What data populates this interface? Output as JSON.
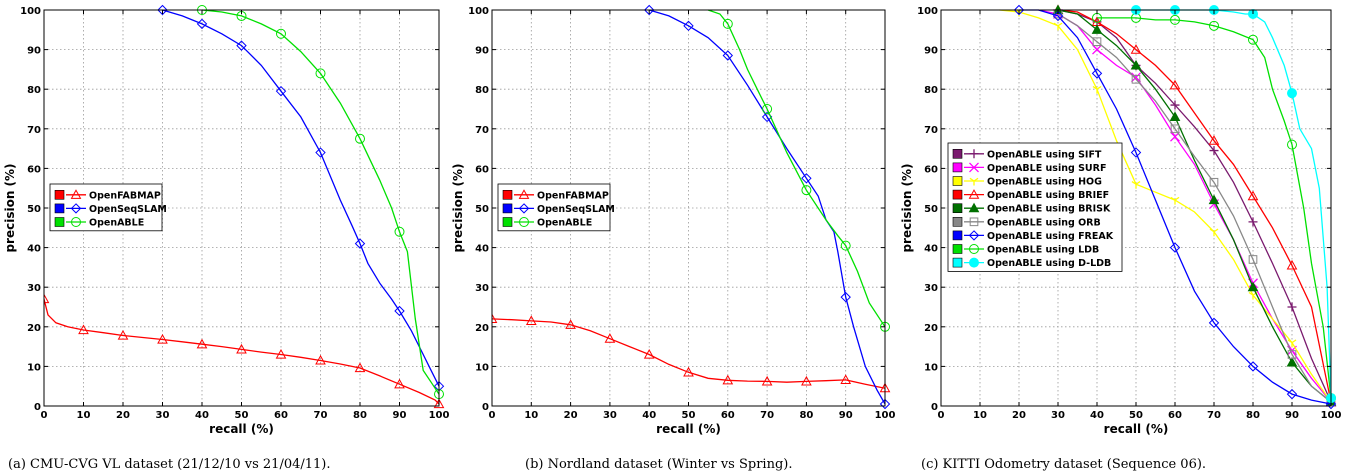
{
  "chart_data": [
    {
      "type": "line",
      "caption": "(a) CMU-CVG VL dataset (21/12/10 vs 21/04/11).",
      "xlabel": "recall (%)",
      "ylabel": "precision (%)",
      "xlim": [
        0,
        100
      ],
      "ylim": [
        0,
        100
      ],
      "xticks": [
        "0",
        "10",
        "20",
        "30",
        "40",
        "50",
        "60",
        "70",
        "80",
        "90",
        "100"
      ],
      "yticks": [
        "0",
        "10",
        "20",
        "30",
        "40",
        "50",
        "60",
        "70",
        "80",
        "90",
        "100"
      ],
      "grid": true,
      "legend_position": "center-left",
      "series": [
        {
          "name": "OpenFABMAP",
          "color": "#ff0000",
          "marker": "triangle",
          "x": [
            0,
            1,
            3,
            6,
            10,
            15,
            20,
            25,
            30,
            35,
            40,
            45,
            50,
            55,
            60,
            65,
            70,
            75,
            80,
            85,
            90,
            95,
            99,
            100
          ],
          "y": [
            27,
            23,
            21,
            20,
            19.2,
            18.5,
            17.8,
            17.3,
            16.8,
            16.2,
            15.6,
            15,
            14.3,
            13.6,
            13,
            12.3,
            11.5,
            10.6,
            9.6,
            7.6,
            5.5,
            3.4,
            1.5,
            0.5
          ]
        },
        {
          "name": "OpenSeqSLAM",
          "color": "#0000ff",
          "marker": "diamond",
          "x": [
            30,
            35,
            40,
            45,
            50,
            55,
            60,
            65,
            70,
            75,
            78,
            80,
            82,
            85,
            88,
            90,
            93,
            96,
            98,
            100
          ],
          "y": [
            100,
            98.5,
            96.5,
            94,
            91,
            86,
            79.5,
            73,
            64,
            52,
            45.5,
            41,
            36,
            31,
            27,
            24,
            19,
            13,
            9,
            5
          ]
        },
        {
          "name": "OpenABLE",
          "color": "#00e000",
          "marker": "circle",
          "x": [
            40,
            45,
            50,
            55,
            60,
            65,
            70,
            75,
            80,
            85,
            88,
            90,
            92,
            94,
            96,
            98,
            100
          ],
          "y": [
            100,
            99.5,
            98.5,
            96.5,
            94,
            89.5,
            84,
            76.5,
            67.5,
            57,
            50,
            44,
            39,
            22,
            9,
            6,
            3
          ]
        }
      ]
    },
    {
      "type": "line",
      "caption": "(b) Nordland dataset (Winter vs Spring).",
      "xlabel": "recall (%)",
      "ylabel": "precision (%)",
      "xlim": [
        0,
        100
      ],
      "ylim": [
        0,
        100
      ],
      "xticks": [
        "0",
        "10",
        "20",
        "30",
        "40",
        "50",
        "60",
        "70",
        "80",
        "90",
        "100"
      ],
      "yticks": [
        "0",
        "10",
        "20",
        "30",
        "40",
        "50",
        "60",
        "70",
        "80",
        "90",
        "100"
      ],
      "grid": true,
      "legend_position": "center-left",
      "series": [
        {
          "name": "OpenFABMAP",
          "color": "#ff0000",
          "marker": "triangle",
          "x": [
            0,
            5,
            10,
            15,
            20,
            25,
            30,
            35,
            40,
            45,
            50,
            55,
            60,
            65,
            70,
            75,
            80,
            85,
            90,
            95,
            100
          ],
          "y": [
            22,
            21.8,
            21.5,
            21.2,
            20.5,
            19,
            17,
            15,
            13,
            10.5,
            8.5,
            7,
            6.5,
            6.3,
            6.2,
            6,
            6.2,
            6.4,
            6.6,
            5.5,
            4.5
          ]
        },
        {
          "name": "OpenSeqSLAM",
          "color": "#0000ff",
          "marker": "diamond",
          "x": [
            40,
            45,
            50,
            55,
            60,
            65,
            70,
            75,
            80,
            83,
            85,
            87,
            88,
            90,
            92,
            95,
            98,
            100
          ],
          "y": [
            100,
            98.5,
            96,
            93,
            88.5,
            81,
            73,
            65,
            57.5,
            53,
            47,
            44,
            39,
            27.5,
            20,
            10,
            4,
            0.5
          ]
        },
        {
          "name": "OpenABLE",
          "color": "#00e000",
          "marker": "circle",
          "x": [
            55,
            58,
            60,
            63,
            65,
            68,
            70,
            75,
            80,
            85,
            88,
            90,
            93,
            96,
            100
          ],
          "y": [
            100,
            99,
            96.5,
            90,
            85,
            79,
            75,
            64,
            54.5,
            47,
            43,
            40.5,
            34,
            26,
            20
          ]
        }
      ]
    },
    {
      "type": "line",
      "caption": "(c) KITTI Odometry dataset (Sequence 06).",
      "xlabel": "recall (%)",
      "ylabel": "precision (%)",
      "xlim": [
        0,
        100
      ],
      "ylim": [
        0,
        100
      ],
      "xticks": [
        "0",
        "10",
        "20",
        "30",
        "40",
        "50",
        "60",
        "70",
        "80",
        "90",
        "100"
      ],
      "yticks": [
        "0",
        "10",
        "20",
        "30",
        "40",
        "50",
        "60",
        "70",
        "80",
        "90",
        "100"
      ],
      "grid": true,
      "legend_position": "center-left",
      "series": [
        {
          "name": "OpenABLE using SIFT",
          "color": "#7a1a6e",
          "marker": "plus",
          "x": [
            30,
            35,
            40,
            45,
            50,
            55,
            60,
            65,
            70,
            75,
            80,
            85,
            90,
            95,
            100
          ],
          "y": [
            100,
            99,
            97,
            93,
            86,
            81.5,
            76,
            70.5,
            64.5,
            56.5,
            46.5,
            36,
            25,
            12,
            1
          ]
        },
        {
          "name": "OpenABLE using SURF",
          "color": "#ff00ff",
          "marker": "x",
          "x": [
            25,
            30,
            35,
            40,
            45,
            50,
            55,
            60,
            65,
            70,
            75,
            80,
            85,
            90,
            95,
            100
          ],
          "y": [
            100,
            99,
            96,
            90,
            86,
            83,
            76,
            68,
            61,
            51,
            42,
            31,
            22,
            14,
            7,
            1
          ]
        },
        {
          "name": "OpenABLE using HOG",
          "color": "#ffff00",
          "marker": "ydown",
          "x": [
            15,
            20,
            25,
            30,
            35,
            40,
            45,
            50,
            55,
            60,
            65,
            70,
            75,
            80,
            85,
            90,
            95,
            100
          ],
          "y": [
            100,
            99.5,
            98,
            96,
            90,
            80,
            67,
            56,
            54,
            52,
            49,
            44,
            37,
            28,
            22,
            16,
            8,
            1
          ]
        },
        {
          "name": "OpenABLE using BRIEF",
          "color": "#ff0000",
          "marker": "triangle",
          "x": [
            30,
            35,
            40,
            45,
            50,
            55,
            60,
            65,
            70,
            75,
            80,
            85,
            90,
            95,
            100
          ],
          "y": [
            100,
            99.5,
            97,
            94,
            90,
            86,
            81,
            74,
            67,
            61,
            53,
            45,
            35.5,
            25,
            1
          ]
        },
        {
          "name": "OpenABLE using BRISK",
          "color": "#007000",
          "marker": "triangle-filled",
          "x": [
            30,
            35,
            40,
            45,
            50,
            55,
            60,
            65,
            70,
            75,
            80,
            85,
            90,
            95,
            100
          ],
          "y": [
            100,
            99,
            95,
            91,
            86,
            80,
            73,
            62,
            52,
            42,
            30,
            20,
            11,
            5,
            1
          ]
        },
        {
          "name": "OpenABLE using ORB",
          "color": "#888888",
          "marker": "square",
          "x": [
            30,
            35,
            40,
            45,
            50,
            55,
            60,
            65,
            70,
            75,
            80,
            85,
            90,
            95,
            100
          ],
          "y": [
            99,
            96,
            92,
            88,
            82.5,
            77,
            70,
            63,
            56.5,
            48,
            37,
            25,
            13,
            5,
            1
          ]
        },
        {
          "name": "OpenABLE using FREAK",
          "color": "#0000ff",
          "marker": "diamond",
          "x": [
            20,
            25,
            30,
            35,
            40,
            45,
            50,
            55,
            60,
            65,
            70,
            75,
            80,
            85,
            90,
            95,
            100
          ],
          "y": [
            100,
            100,
            98.5,
            93,
            84,
            75,
            64,
            52,
            40,
            29,
            21,
            15,
            10,
            6,
            3,
            1.5,
            0.5
          ]
        },
        {
          "name": "OpenABLE using LDB",
          "color": "#00e000",
          "marker": "circle",
          "x": [
            40,
            45,
            50,
            55,
            60,
            65,
            70,
            75,
            80,
            83,
            85,
            88,
            90,
            93,
            95,
            98,
            100
          ],
          "y": [
            98,
            98,
            98,
            97.5,
            97.5,
            97,
            96,
            94.5,
            92.5,
            88,
            80,
            72,
            66,
            50,
            36,
            20,
            2
          ]
        },
        {
          "name": "OpenABLE using D-LDB",
          "color": "#00ffff",
          "marker": "circle-filled",
          "x": [
            50,
            60,
            70,
            75,
            78,
            80,
            83,
            85,
            88,
            90,
            92,
            95,
            97,
            99,
            100
          ],
          "y": [
            100,
            100,
            100,
            99.5,
            99,
            99,
            97,
            93,
            86,
            79,
            70,
            65,
            55,
            30,
            2
          ]
        }
      ]
    }
  ]
}
